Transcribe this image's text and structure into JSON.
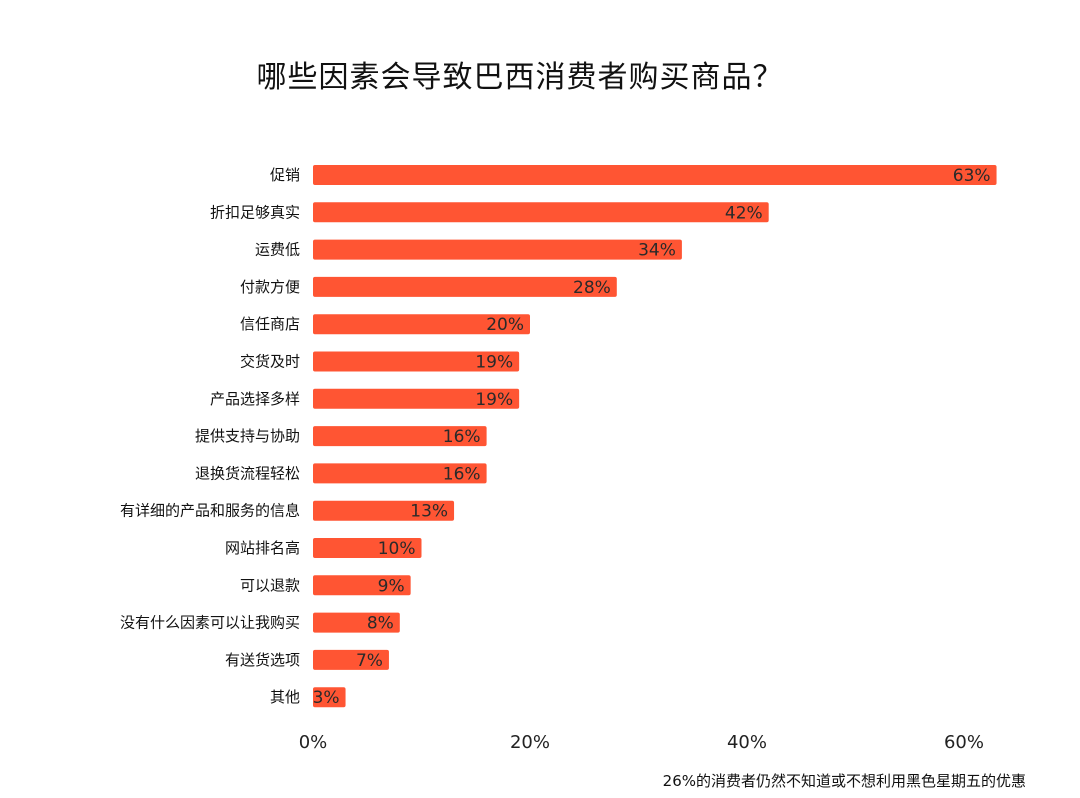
{
  "chart_data": {
    "type": "bar",
    "orientation": "horizontal",
    "title": "哪些因素会导致巴西消费者购买商品？",
    "footnote": "26%的消费者仍然不知道或不想利用黑色星期五的优惠",
    "categories": [
      "促销",
      "折扣足够真实",
      "运费低",
      "付款方便",
      "信任商店",
      "交货及时",
      "产品选择多样",
      "提供支持与协助",
      "退换货流程轻松",
      "有详细的产品和服务的信息",
      "网站排名高",
      "可以退款",
      "没有什么因素可以让我购买",
      "有送货选项",
      "其他"
    ],
    "values": [
      63,
      42,
      34,
      28,
      20,
      19,
      19,
      16,
      16,
      13,
      10,
      9,
      8,
      7,
      3
    ],
    "value_labels": [
      "63%",
      "42%",
      "34%",
      "28%",
      "20%",
      "19%",
      "19%",
      "16%",
      "16%",
      "13%",
      "10%",
      "9%",
      "8%",
      "7%",
      "3%"
    ],
    "xlim": [
      0,
      60
    ],
    "xticks": [
      0,
      20,
      40,
      60
    ],
    "xtick_labels": [
      "0%",
      "20%",
      "40%",
      "60%"
    ],
    "grid": false,
    "bar_color": "#ff5533"
  }
}
